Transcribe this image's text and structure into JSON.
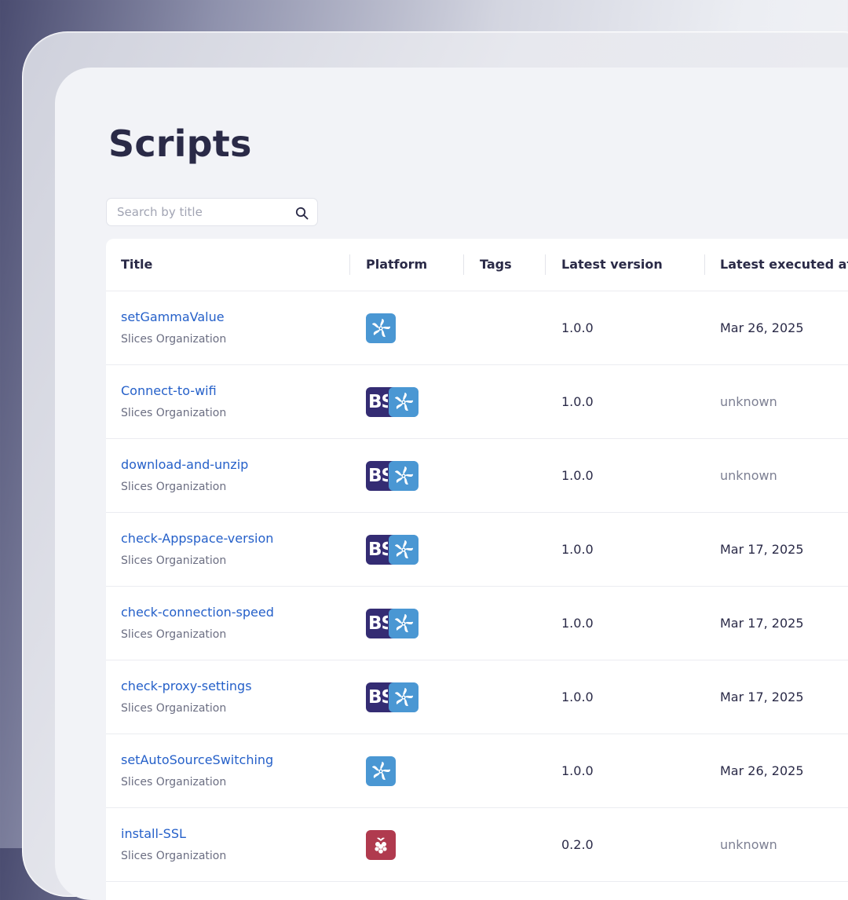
{
  "page": {
    "title": "Scripts"
  },
  "search": {
    "placeholder": "Search by title",
    "value": ""
  },
  "table": {
    "columns": [
      "Title",
      "Platform",
      "Tags",
      "Latest version",
      "Latest executed at"
    ],
    "rows": [
      {
        "title": "setGammaValue",
        "org": "Slices Organization",
        "platforms": [
          "tizen"
        ],
        "tags": "",
        "version": "1.0.0",
        "executed": "Mar 26, 2025"
      },
      {
        "title": "Connect-to-wifi",
        "org": "Slices Organization",
        "platforms": [
          "brightsign",
          "tizen"
        ],
        "tags": "",
        "version": "1.0.0",
        "executed": "unknown"
      },
      {
        "title": "download-and-unzip",
        "org": "Slices Organization",
        "platforms": [
          "brightsign",
          "tizen"
        ],
        "tags": "",
        "version": "1.0.0",
        "executed": "unknown"
      },
      {
        "title": "check-Appspace-version",
        "org": "Slices Organization",
        "platforms": [
          "brightsign",
          "tizen"
        ],
        "tags": "",
        "version": "1.0.0",
        "executed": "Mar 17, 2025"
      },
      {
        "title": "check-connection-speed",
        "org": "Slices Organization",
        "platforms": [
          "brightsign",
          "tizen"
        ],
        "tags": "",
        "version": "1.0.0",
        "executed": "Mar 17, 2025"
      },
      {
        "title": "check-proxy-settings",
        "org": "Slices Organization",
        "platforms": [
          "brightsign",
          "tizen"
        ],
        "tags": "",
        "version": "1.0.0",
        "executed": "Mar 17, 2025"
      },
      {
        "title": "setAutoSourceSwitching",
        "org": "Slices Organization",
        "platforms": [
          "tizen"
        ],
        "tags": "",
        "version": "1.0.0",
        "executed": "Mar 26, 2025"
      },
      {
        "title": "install-SSL",
        "org": "Slices Organization",
        "platforms": [
          "raspberry-pi"
        ],
        "tags": "",
        "version": "0.2.0",
        "executed": "unknown"
      }
    ]
  },
  "icons": {
    "search": "search-icon",
    "tizen": "tizen-platform-icon",
    "brightsign": "brightsign-platform-icon",
    "raspberry_pi": "raspberry-pi-platform-icon",
    "brightsign_text": "BS"
  },
  "colors": {
    "link": "#2560c9",
    "heading": "#2a2a47",
    "tizen": "#4a97d3",
    "brightsign": "#342c73",
    "raspberry_pi": "#b03a4e"
  }
}
